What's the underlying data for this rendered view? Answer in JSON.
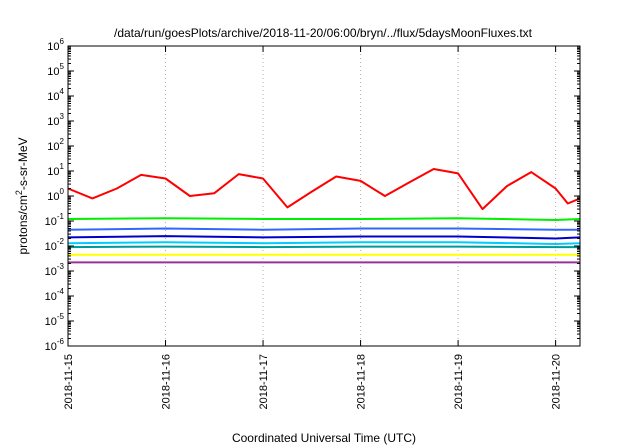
{
  "chart_data": {
    "type": "line",
    "title": "/data/run/goesPlots/archive/2018-11-20/06:00/bryn/../flux/5daysMoonFluxes.txt",
    "xlabel": "Coordinated Universal Time (UTC)",
    "ylabel": "protons/cm²-s-sr-MeV",
    "ylabel_parts": {
      "pre": "protons/cm",
      "sup": "2",
      "post": "-s-sr-MeV"
    },
    "y_scale": "log",
    "ylim": [
      1e-06,
      1000000.0
    ],
    "xlim": [
      "2018-11-15",
      "2018-11-20T06:00"
    ],
    "grid": true,
    "x_ticks": [
      "2018-11-15",
      "2018-11-16",
      "2018-11-17",
      "2018-11-18",
      "2018-11-19",
      "2018-11-20"
    ],
    "y_ticks": [
      {
        "base": "10",
        "exp": "6"
      },
      {
        "base": "10",
        "exp": "5"
      },
      {
        "base": "10",
        "exp": "4"
      },
      {
        "base": "10",
        "exp": "3"
      },
      {
        "base": "10",
        "exp": "2"
      },
      {
        "base": "10",
        "exp": "1"
      },
      {
        "base": "10",
        "exp": "0"
      },
      {
        "base": "10",
        "exp": "-1"
      },
      {
        "base": "10",
        "exp": "-2"
      },
      {
        "base": "10",
        "exp": "-3"
      },
      {
        "base": "10",
        "exp": "-4"
      },
      {
        "base": "10",
        "exp": "-5"
      },
      {
        "base": "10",
        "exp": "-6"
      }
    ],
    "series": [
      {
        "color": "#ff0000",
        "x": [
          "2018-11-15T00:00",
          "2018-11-15T06:00",
          "2018-11-15T12:00",
          "2018-11-15T18:00",
          "2018-11-16T00:00",
          "2018-11-16T06:00",
          "2018-11-16T12:00",
          "2018-11-16T18:00",
          "2018-11-17T00:00",
          "2018-11-17T06:00",
          "2018-11-17T12:00",
          "2018-11-17T18:00",
          "2018-11-18T00:00",
          "2018-11-18T06:00",
          "2018-11-18T12:00",
          "2018-11-18T18:00",
          "2018-11-19T00:00",
          "2018-11-19T06:00",
          "2018-11-19T12:00",
          "2018-11-19T18:00",
          "2018-11-20T00:00",
          "2018-11-20T03:00",
          "2018-11-20T06:00"
        ],
        "values": [
          2.0,
          0.8,
          2.0,
          7.0,
          5.0,
          1.0,
          1.3,
          7.5,
          5.0,
          0.35,
          1.5,
          6.0,
          4.0,
          1.0,
          3.5,
          12.0,
          8.0,
          0.3,
          2.5,
          9.0,
          2.0,
          0.5,
          0.8
        ]
      },
      {
        "color": "#00ee00",
        "x": [
          "2018-11-15T00:00",
          "2018-11-16T00:00",
          "2018-11-17T00:00",
          "2018-11-18T00:00",
          "2018-11-19T00:00",
          "2018-11-20T00:00",
          "2018-11-20T06:00"
        ],
        "values": [
          0.12,
          0.13,
          0.12,
          0.12,
          0.13,
          0.11,
          0.12
        ]
      },
      {
        "color": "#3366ff",
        "x": [
          "2018-11-15T00:00",
          "2018-11-16T00:00",
          "2018-11-17T00:00",
          "2018-11-18T00:00",
          "2018-11-19T00:00",
          "2018-11-20T00:00",
          "2018-11-20T06:00"
        ],
        "values": [
          0.045,
          0.05,
          0.045,
          0.05,
          0.05,
          0.045,
          0.045
        ]
      },
      {
        "color": "#0000cc",
        "x": [
          "2018-11-15T00:00",
          "2018-11-16T00:00",
          "2018-11-17T00:00",
          "2018-11-18T00:00",
          "2018-11-19T00:00",
          "2018-11-20T00:00",
          "2018-11-20T06:00"
        ],
        "values": [
          0.022,
          0.025,
          0.022,
          0.024,
          0.024,
          0.02,
          0.022
        ]
      },
      {
        "color": "#00ccff",
        "x": [
          "2018-11-15T00:00",
          "2018-11-16T00:00",
          "2018-11-17T00:00",
          "2018-11-18T00:00",
          "2018-11-19T00:00",
          "2018-11-20T00:00",
          "2018-11-20T06:00"
        ],
        "values": [
          0.013,
          0.014,
          0.013,
          0.014,
          0.014,
          0.012,
          0.013
        ]
      },
      {
        "color": "#009999",
        "x": [
          "2018-11-15T00:00",
          "2018-11-16T00:00",
          "2018-11-17T00:00",
          "2018-11-18T00:00",
          "2018-11-19T00:00",
          "2018-11-20T00:00",
          "2018-11-20T06:00"
        ],
        "values": [
          0.009,
          0.0095,
          0.009,
          0.0095,
          0.0095,
          0.009,
          0.009
        ]
      },
      {
        "color": "#ffff00",
        "x": [
          "2018-11-15T00:00",
          "2018-11-16T00:00",
          "2018-11-17T00:00",
          "2018-11-18T00:00",
          "2018-11-19T00:00",
          "2018-11-20T00:00",
          "2018-11-20T06:00"
        ],
        "values": [
          0.0045,
          0.0045,
          0.0045,
          0.0045,
          0.0045,
          0.0045,
          0.0045
        ]
      },
      {
        "color": "#993399",
        "x": [
          "2018-11-15T00:00",
          "2018-11-16T00:00",
          "2018-11-17T00:00",
          "2018-11-18T00:00",
          "2018-11-19T00:00",
          "2018-11-20T00:00",
          "2018-11-20T06:00"
        ],
        "values": [
          0.0022,
          0.0022,
          0.0022,
          0.0022,
          0.0022,
          0.0022,
          0.0022
        ]
      }
    ]
  }
}
